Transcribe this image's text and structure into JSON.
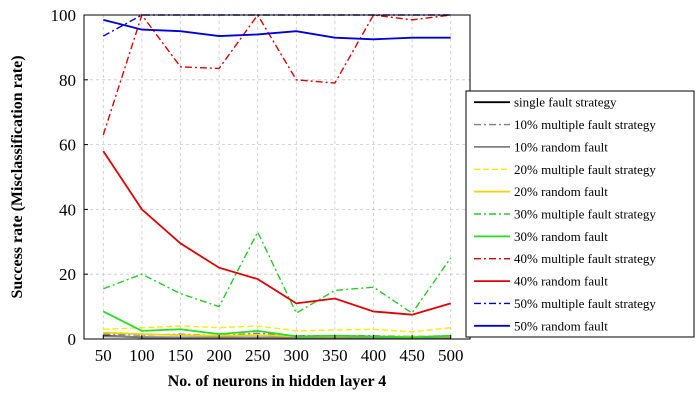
{
  "chart_data": {
    "type": "line",
    "xlabel": "No. of neurons in hidden layer 4",
    "ylabel": "Success rate (Misclassification rate)",
    "x": [
      50,
      100,
      150,
      200,
      250,
      300,
      350,
      400,
      450,
      500
    ],
    "xlim": [
      25,
      525
    ],
    "ylim": [
      0,
      100
    ],
    "yticks": [
      0,
      20,
      40,
      60,
      80,
      100
    ],
    "grid": true,
    "legend_position": "right",
    "series": [
      {
        "name": "single fault strategy",
        "color": "#000000",
        "dash": "solid",
        "values": [
          1.0,
          0.5,
          0.5,
          0.5,
          0.5,
          0.5,
          0.5,
          0.5,
          0.5,
          0.5
        ]
      },
      {
        "name": "10% multiple fault strategy",
        "color": "#808080",
        "dash": "dashdot",
        "values": [
          1.5,
          1.2,
          1.5,
          1.0,
          1.8,
          1.0,
          1.0,
          1.0,
          0.8,
          1.0
        ]
      },
      {
        "name": "10% random fault",
        "color": "#808080",
        "dash": "solid",
        "values": [
          0.8,
          0.6,
          0.5,
          0.5,
          0.5,
          0.5,
          0.5,
          0.5,
          0.5,
          0.5
        ]
      },
      {
        "name": "20% multiple fault strategy",
        "color": "#ffea00",
        "dash": "dashed",
        "values": [
          3.0,
          3.5,
          4.0,
          3.5,
          4.0,
          2.5,
          2.8,
          3.0,
          2.2,
          3.5
        ]
      },
      {
        "name": "20% random fault",
        "color": "#f2d400",
        "dash": "solid",
        "values": [
          2.0,
          1.5,
          1.2,
          1.0,
          1.2,
          0.8,
          0.8,
          0.8,
          0.7,
          0.8
        ]
      },
      {
        "name": "30% multiple fault strategy",
        "color": "#22cc22",
        "dash": "dashdot",
        "values": [
          15.5,
          20.0,
          14.0,
          10.0,
          33.0,
          8.0,
          15.0,
          16.0,
          8.0,
          25.0
        ]
      },
      {
        "name": "30% random fault",
        "color": "#22dd22",
        "dash": "solid",
        "values": [
          8.5,
          2.5,
          3.0,
          1.5,
          2.5,
          0.8,
          1.0,
          0.8,
          0.5,
          1.0
        ]
      },
      {
        "name": "40% multiple fault strategy",
        "color": "#dd0000",
        "dash": "dashdot",
        "values": [
          63.0,
          100.0,
          84.0,
          83.5,
          100.0,
          80.0,
          79.0,
          100.0,
          98.5,
          100.0
        ]
      },
      {
        "name": "40% random fault",
        "color": "#e00000",
        "dash": "solid",
        "values": [
          58.0,
          40.0,
          29.5,
          22.0,
          18.5,
          11.0,
          12.5,
          8.5,
          7.5,
          11.0
        ]
      },
      {
        "name": "50% multiple fault strategy",
        "color": "#0000cc",
        "dash": "dashdot",
        "values": [
          93.5,
          100.0,
          100.0,
          100.0,
          100.0,
          100.0,
          100.0,
          100.0,
          100.0,
          100.0
        ]
      },
      {
        "name": "50% random fault",
        "color": "#0000dd",
        "dash": "solid",
        "values": [
          98.5,
          95.5,
          95.0,
          93.5,
          94.0,
          95.0,
          93.0,
          92.5,
          93.0,
          93.0
        ]
      }
    ]
  }
}
